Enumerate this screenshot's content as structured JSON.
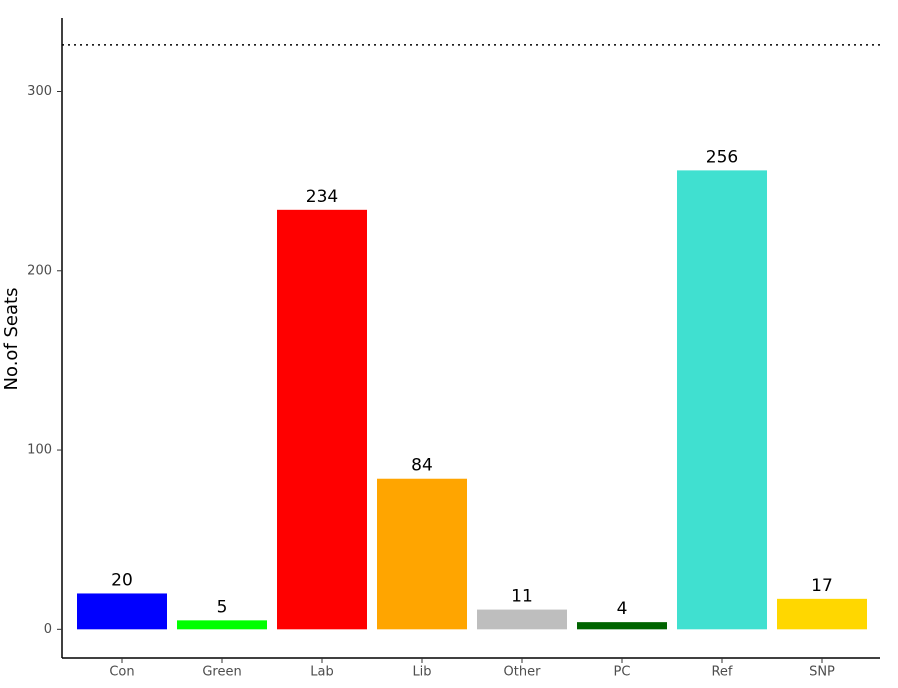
{
  "chart_data": {
    "type": "bar",
    "y_label": "No.of Seats",
    "categories": [
      "Con",
      "Green",
      "Lab",
      "Lib",
      "Other",
      "PC",
      "Ref",
      "SNP"
    ],
    "values": [
      20,
      5,
      234,
      84,
      11,
      4,
      256,
      17
    ],
    "colors": [
      "#0000ff",
      "#00ff00",
      "#ff0000",
      "#ffa500",
      "#bebebe",
      "#006400",
      "#40e0d0",
      "#ffd700"
    ],
    "ylim": [
      -16,
      341
    ],
    "yticks": [
      0,
      100,
      200,
      300
    ],
    "reference_line": 326,
    "grid": false,
    "value_labels_shown": true
  }
}
